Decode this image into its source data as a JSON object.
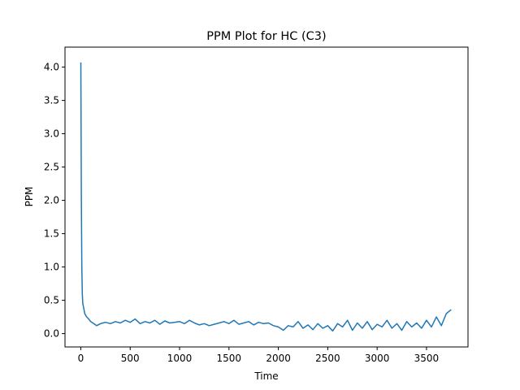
{
  "chart_data": {
    "type": "line",
    "title": "PPM Plot for HC (C3)",
    "xlabel": "Time",
    "ylabel": "PPM",
    "xlim": [
      -160,
      3920
    ],
    "ylim": [
      -0.2,
      4.3
    ],
    "xticks": [
      0,
      500,
      1000,
      1500,
      2000,
      2500,
      3000,
      3500
    ],
    "yticks": [
      0.0,
      0.5,
      1.0,
      1.5,
      2.0,
      2.5,
      3.0,
      3.5,
      4.0
    ],
    "xtick_labels": [
      "0",
      "500",
      "1000",
      "1500",
      "2000",
      "2500",
      "3000",
      "3500"
    ],
    "ytick_labels": [
      "0.0",
      "0.5",
      "1.0",
      "1.5",
      "2.0",
      "2.5",
      "3.0",
      "3.5",
      "4.0"
    ],
    "grid": false,
    "series": [
      {
        "color": "#1f77b4",
        "x": [
          0,
          5,
          10,
          15,
          20,
          30,
          40,
          60,
          80,
          100,
          130,
          160,
          200,
          250,
          300,
          350,
          400,
          450,
          500,
          550,
          600,
          650,
          700,
          750,
          800,
          850,
          900,
          950,
          1000,
          1050,
          1100,
          1150,
          1200,
          1250,
          1300,
          1350,
          1400,
          1450,
          1500,
          1550,
          1600,
          1650,
          1700,
          1750,
          1800,
          1850,
          1900,
          1950,
          2000,
          2050,
          2100,
          2150,
          2200,
          2250,
          2300,
          2350,
          2400,
          2450,
          2500,
          2550,
          2600,
          2650,
          2700,
          2750,
          2800,
          2850,
          2900,
          2950,
          3000,
          3050,
          3100,
          3150,
          3200,
          3250,
          3300,
          3350,
          3400,
          3450,
          3500,
          3550,
          3600,
          3650,
          3700,
          3750
        ],
        "y": [
          4.07,
          2.1,
          1.0,
          0.6,
          0.45,
          0.38,
          0.3,
          0.25,
          0.22,
          0.18,
          0.15,
          0.12,
          0.15,
          0.17,
          0.15,
          0.18,
          0.16,
          0.2,
          0.17,
          0.22,
          0.15,
          0.18,
          0.16,
          0.2,
          0.14,
          0.19,
          0.16,
          0.17,
          0.18,
          0.15,
          0.2,
          0.16,
          0.13,
          0.15,
          0.12,
          0.14,
          0.16,
          0.18,
          0.15,
          0.2,
          0.14,
          0.16,
          0.18,
          0.13,
          0.17,
          0.15,
          0.16,
          0.12,
          0.1,
          0.05,
          0.12,
          0.1,
          0.18,
          0.08,
          0.13,
          0.06,
          0.15,
          0.08,
          0.12,
          0.04,
          0.15,
          0.1,
          0.2,
          0.05,
          0.16,
          0.08,
          0.18,
          0.06,
          0.14,
          0.1,
          0.2,
          0.08,
          0.15,
          0.05,
          0.18,
          0.1,
          0.16,
          0.08,
          0.2,
          0.1,
          0.25,
          0.12,
          0.3,
          0.36
        ]
      }
    ]
  }
}
